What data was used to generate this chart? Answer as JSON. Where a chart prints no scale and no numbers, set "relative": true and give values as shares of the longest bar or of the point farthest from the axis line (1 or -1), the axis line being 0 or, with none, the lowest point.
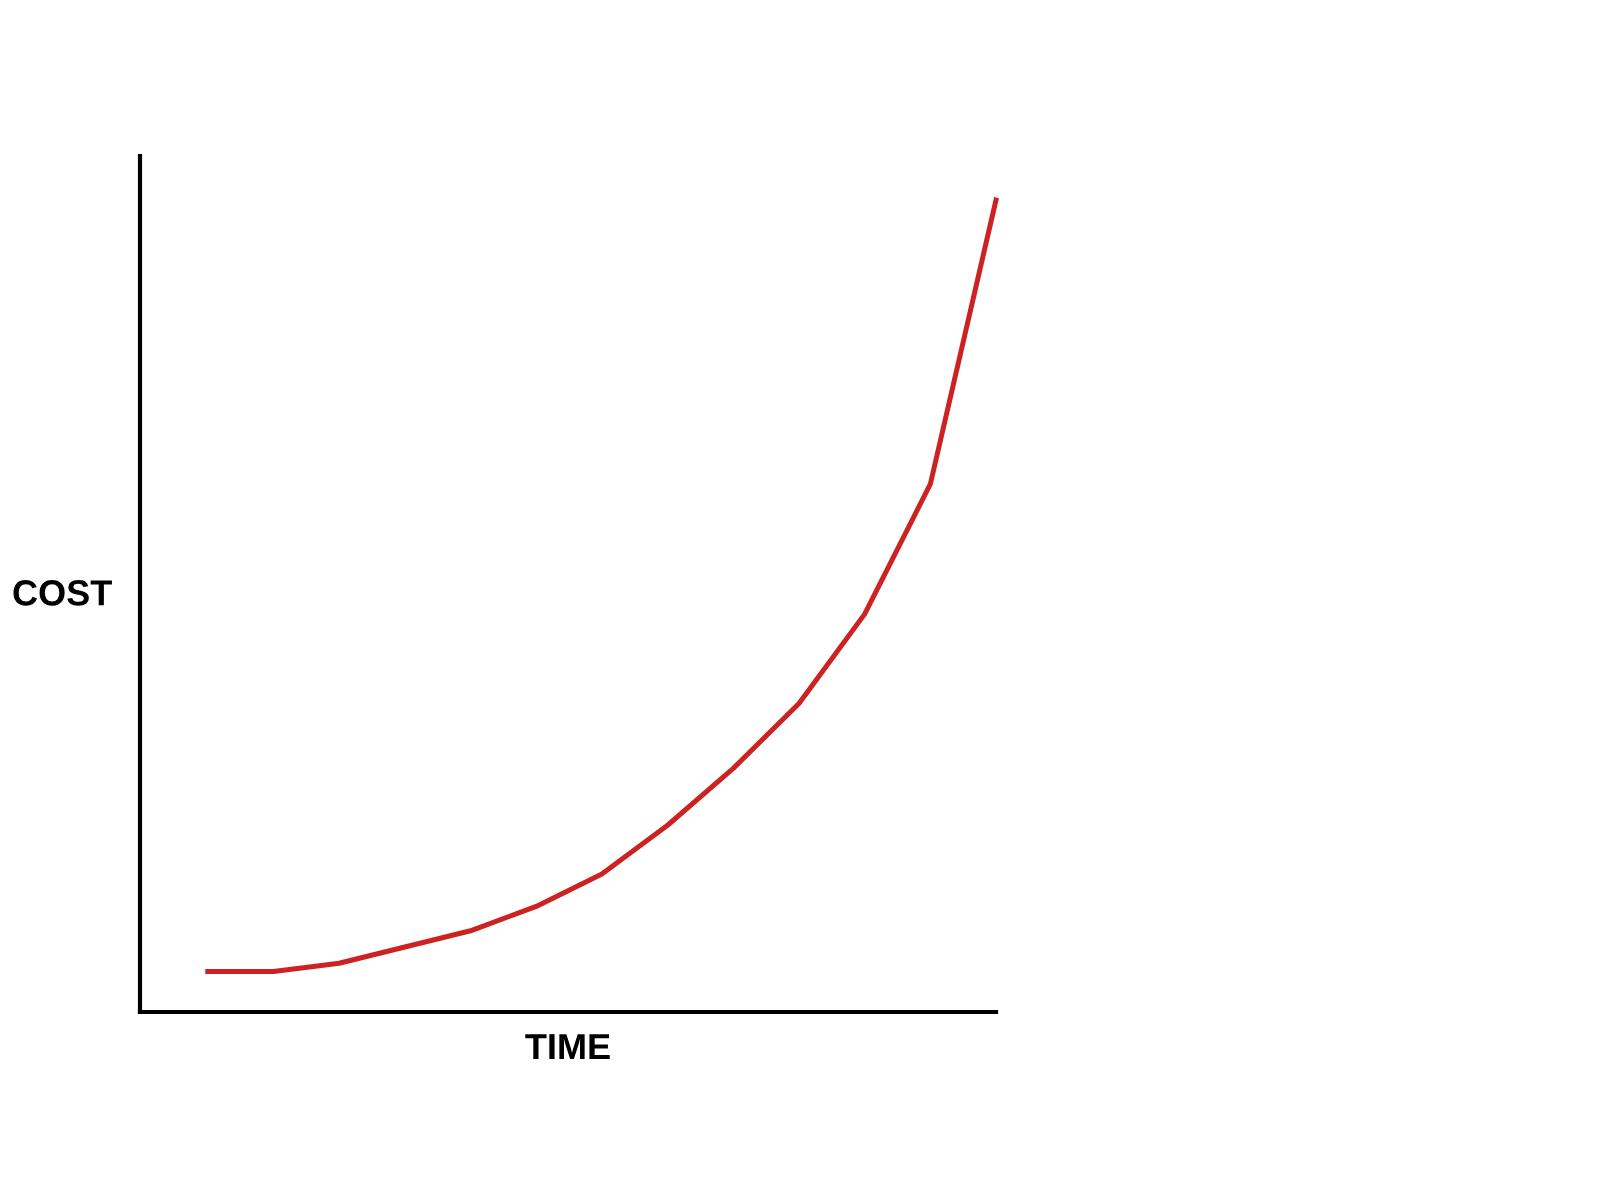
{
  "chart_data": {
    "type": "line",
    "relative": true,
    "xlabel": "TIME",
    "ylabel": "COST",
    "categories": [
      null,
      null,
      null,
      null,
      null,
      null,
      null,
      null,
      null,
      null,
      null,
      null,
      null
    ],
    "series": [
      {
        "color": "#cc2222",
        "values": [
          0.05,
          0.05,
          0.06,
          0.08,
          0.1,
          0.13,
          0.17,
          0.23,
          0.3,
          0.38,
          0.49,
          0.65,
          1
        ]
      }
    ],
    "grid": false,
    "legend": false,
    "marker": "none",
    "line_style": "solid"
  }
}
